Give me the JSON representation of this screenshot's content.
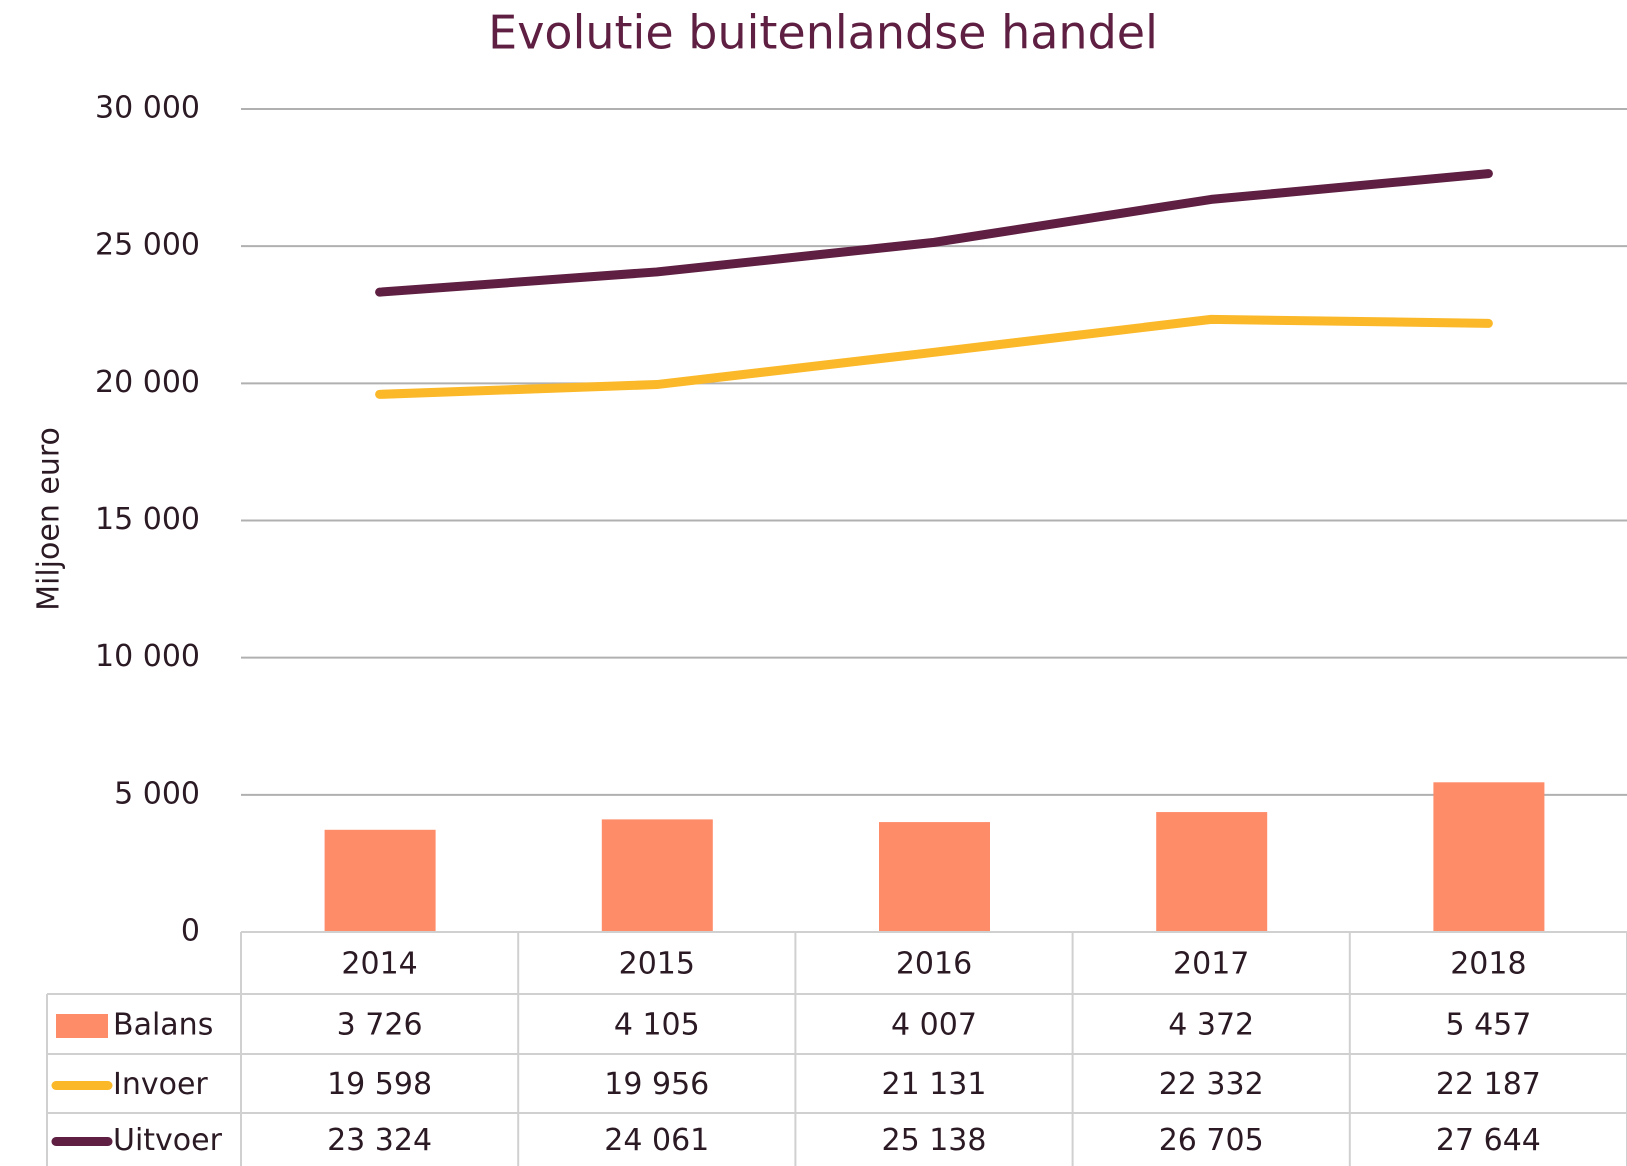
{
  "chart_data": {
    "type": "bar_line_table",
    "title": "Evolutie buitenlandse handel",
    "y_label": "Miljoen euro",
    "categories": [
      "2014",
      "2015",
      "2016",
      "2017",
      "2018"
    ],
    "series": [
      {
        "name": "Balans",
        "type": "bar",
        "color": "#ff8c69",
        "values": [
          3726,
          4105,
          4007,
          4372,
          5457
        ],
        "value_labels": [
          "3 726",
          "4 105",
          "4 007",
          "4 372",
          "5 457"
        ]
      },
      {
        "name": "Invoer",
        "type": "line",
        "color": "#fbb829",
        "values": [
          19598,
          19956,
          21131,
          22332,
          22187
        ],
        "value_labels": [
          "19 598",
          "19 956",
          "21 131",
          "22 332",
          "22 187"
        ]
      },
      {
        "name": "Uitvoer",
        "type": "line",
        "color": "#5e1f42",
        "values": [
          23324,
          24061,
          25138,
          26705,
          27644
        ],
        "value_labels": [
          "23 324",
          "24 061",
          "25 138",
          "26 705",
          "27 644"
        ]
      }
    ],
    "ylim": [
      0,
      30000
    ],
    "yticks": [
      0,
      {
        "value": 5000,
        "label": "5 000"
      },
      {
        "value": 10000,
        "label": "10 000"
      },
      {
        "value": 15000,
        "label": "15 000"
      },
      {
        "value": 20000,
        "label": "20 000"
      },
      {
        "value": 25000,
        "label": "25 000"
      },
      {
        "value": 30000,
        "label": "30 000"
      }
    ],
    "grid": true
  }
}
